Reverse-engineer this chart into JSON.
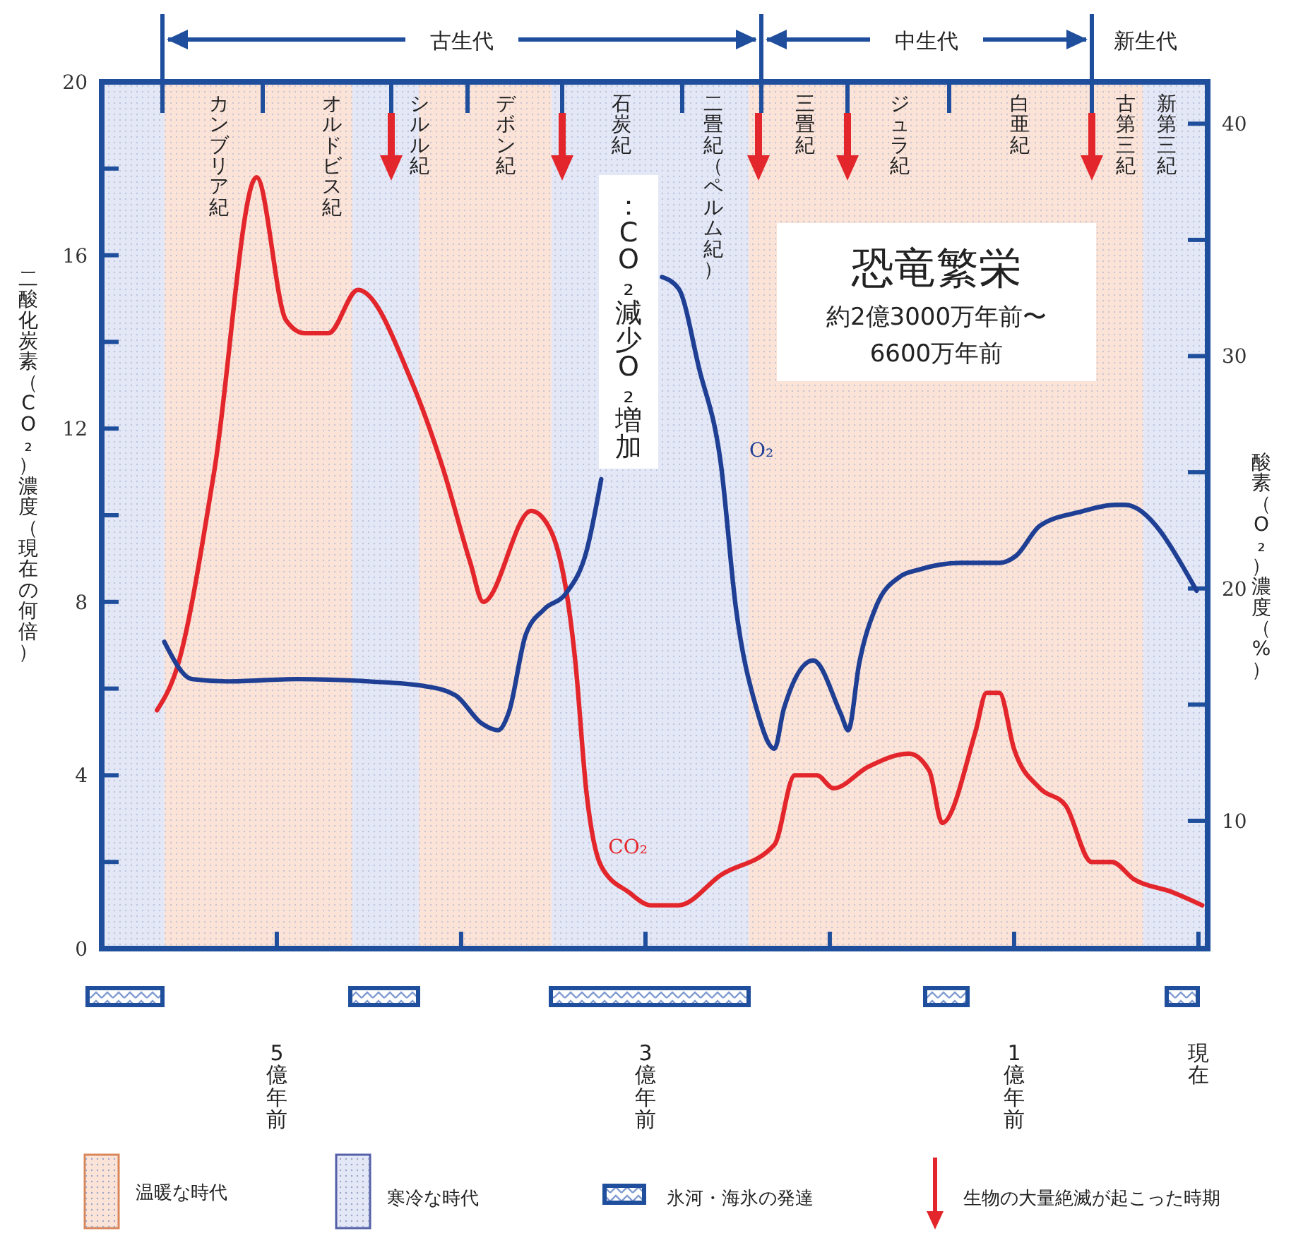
{
  "chart_data": {
    "type": "line",
    "ylabel": "二酸化炭素（CO₂）濃度（現在の何倍）",
    "y2label": "酸素（O₂）濃度（%）",
    "xlim": [
      5.95,
      -0.05
    ],
    "xticks": [
      {
        "value": 5,
        "label": "5億年前"
      },
      {
        "value": 4,
        "label": null
      },
      {
        "value": 3,
        "label": "3億年前"
      },
      {
        "value": 2,
        "label": null
      },
      {
        "value": 1,
        "label": "1億年前"
      },
      {
        "value": 0,
        "label": "現在"
      }
    ],
    "ylim": [
      0,
      20
    ],
    "yticks": [
      0,
      {
        "value": 2,
        "label": null
      },
      4,
      {
        "value": 6,
        "label": null
      },
      8,
      {
        "value": 10,
        "label": null
      },
      12,
      {
        "value": 14,
        "label": null
      },
      16,
      {
        "value": 18,
        "label": null
      },
      20
    ],
    "y2lim": [
      4.5,
      41.8
    ],
    "y2ticks": [
      10,
      {
        "value": 15,
        "label": null
      },
      20,
      {
        "value": 25,
        "label": null
      },
      30,
      {
        "value": 35,
        "label": null
      },
      40
    ],
    "series": [
      {
        "name": "CO₂",
        "color": "#e3262b",
        "x": [
          5.65,
          5.54,
          5.34,
          5.11,
          4.95,
          4.85,
          4.72,
          4.56,
          4.27,
          4.1,
          3.95,
          3.88,
          3.62,
          3.52,
          3.38,
          3.32,
          3.24,
          3.09,
          2.97,
          2.82,
          2.59,
          2.3,
          2.19,
          2.07,
          1.98,
          1.79,
          1.57,
          1.46,
          1.39,
          1.21,
          1.15,
          1.08,
          1.0,
          0.86,
          0.72,
          0.58,
          0.47,
          0.35,
          0.14,
          -0.02
        ],
        "values": [
          5.5,
          6.5,
          11.0,
          17.8,
          14.5,
          14.2,
          14.2,
          15.2,
          13.1,
          11.1,
          8.9,
          8.0,
          10.1,
          9.7,
          6.6,
          3.6,
          1.9,
          1.3,
          1.0,
          1.0,
          1.7,
          2.4,
          4.0,
          4.0,
          3.7,
          4.2,
          4.5,
          4.1,
          2.9,
          5.0,
          5.9,
          5.9,
          4.6,
          3.7,
          3.3,
          2.0,
          2.0,
          1.6,
          1.3,
          1.0
        ]
      },
      {
        "name": "O₂",
        "color": "#1f3f94",
        "axis": "y2",
        "x": [
          5.61,
          5.46,
          5.27,
          4.89,
          4.5,
          4.2,
          4.03,
          3.89,
          3.8,
          3.74,
          3.65,
          3.55,
          3.43,
          3.32,
          3.24,
          3.07,
          2.91,
          2.82,
          2.71,
          2.59,
          2.51,
          2.4,
          2.3,
          2.25,
          2.09,
          1.94,
          1.9,
          1.84,
          1.75,
          1.62,
          1.52,
          1.29,
          1.08,
          0.99,
          0.86,
          0.64,
          0.45,
          0.4,
          0.01
        ],
        "values": [
          17.7,
          16.1,
          16.0,
          16.1,
          16.0,
          15.8,
          15.4,
          14.2,
          13.9,
          14.7,
          18.0,
          19.1,
          19.8,
          21.6,
          24.7,
          null,
          33.4,
          32.9,
          29.5,
          25.3,
          19.2,
          14.9,
          13.1,
          14.8,
          16.9,
          14.6,
          13.9,
          16.8,
          19.2,
          20.5,
          20.8,
          21.1,
          21.1,
          21.4,
          22.7,
          23.3,
          23.6,
          23.6,
          19.9
        ]
      }
    ],
    "bands": [
      {
        "axis": "x",
        "from": 5.61,
        "to": 4.59,
        "label": null,
        "color": "#fbe3d8"
      },
      {
        "axis": "x",
        "from": 4.23,
        "to": 3.51,
        "label": null,
        "color": "#fbe3d8"
      },
      {
        "axis": "x",
        "from": 2.44,
        "to": 0.3,
        "label": null,
        "color": "#fbe3d8"
      },
      {
        "axis": "x",
        "from": 5.95,
        "to": 5.61,
        "label": null,
        "color": "#e3e7f6"
      },
      {
        "axis": "x",
        "from": 4.59,
        "to": 4.23,
        "label": null,
        "color": "#e3e7f6"
      },
      {
        "axis": "x",
        "from": 3.51,
        "to": 2.44,
        "label": null,
        "color": "#e3e7f6"
      },
      {
        "axis": "x",
        "from": 0.3,
        "to": -0.05,
        "label": null,
        "color": "#e3e7f6"
      }
    ],
    "annotations": [
      "：CO₂減少O₂増加",
      "恐竜繁栄",
      "約2億3000万年前〜",
      "6600万年前",
      "温暖な時代",
      "寒冷な時代",
      "氷河・海氷の発達",
      "生物の大量絶滅が起こった時期",
      "カンブリア紀",
      "オルドビス紀",
      "シルル紀",
      "デボン紀",
      "石炭紀",
      "二畳紀（ペルム紀）",
      "三畳紀",
      "ジュラ紀",
      "白亜紀",
      "古第三紀",
      "新第三紀",
      "古生代",
      "中生代",
      "新生代"
    ]
  }
}
